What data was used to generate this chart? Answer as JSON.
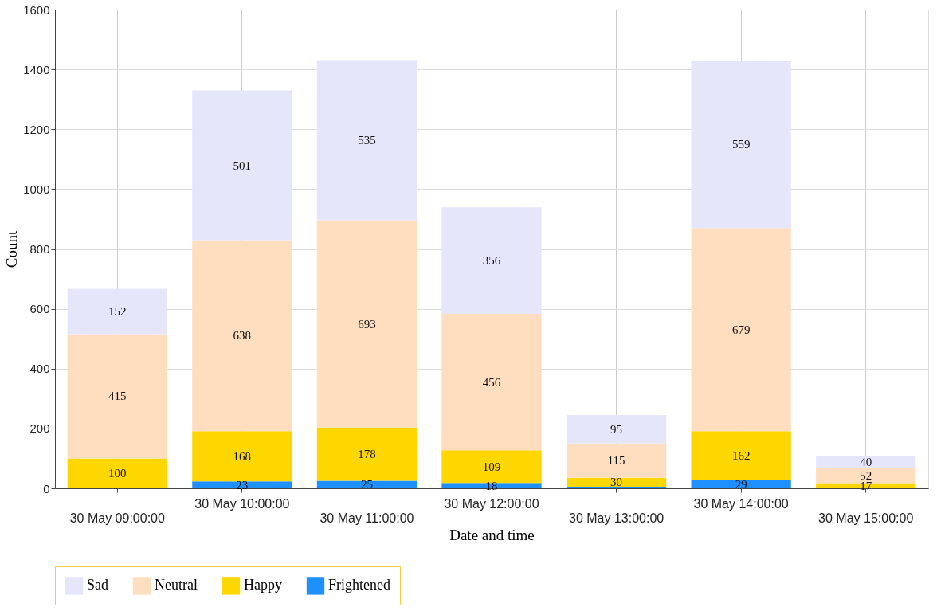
{
  "chart_data": {
    "type": "bar",
    "stacked": true,
    "xlabel": "Date and time",
    "ylabel": "Count",
    "categories": [
      "30 May 09:00:00",
      "30 May 10:00:00",
      "30 May 11:00:00",
      "30 May 12:00:00",
      "30 May 13:00:00",
      "30 May 14:00:00",
      "30 May 15:00:00"
    ],
    "series": [
      {
        "name": "Frightened",
        "color": "#1e90ff",
        "values": [
          null,
          23,
          25,
          18,
          5,
          29,
          null
        ],
        "value_labels": [
          null,
          "23",
          "25",
          "18",
          null,
          "29",
          null
        ]
      },
      {
        "name": "Happy",
        "color": "#ffd700",
        "values": [
          100,
          168,
          178,
          109,
          30,
          162,
          17
        ],
        "value_labels": [
          "100",
          "168",
          "178",
          "109",
          "30",
          "162",
          "17"
        ]
      },
      {
        "name": "Neutral",
        "color": "#ffdec0",
        "values": [
          415,
          638,
          693,
          456,
          115,
          679,
          52
        ],
        "value_labels": [
          "415",
          "638",
          "693",
          "456",
          "115",
          "679",
          "52"
        ]
      },
      {
        "name": "Sad",
        "color": "#e6e6fa",
        "values": [
          152,
          501,
          535,
          356,
          95,
          559,
          40
        ],
        "value_labels": [
          "152",
          "501",
          "535",
          "356",
          "95",
          "559",
          "40"
        ]
      }
    ],
    "ylim": [
      0,
      1600
    ],
    "yticks": [
      0,
      200,
      400,
      600,
      800,
      1000,
      1200,
      1400,
      1600
    ],
    "grid": true,
    "legend": "bottom"
  }
}
